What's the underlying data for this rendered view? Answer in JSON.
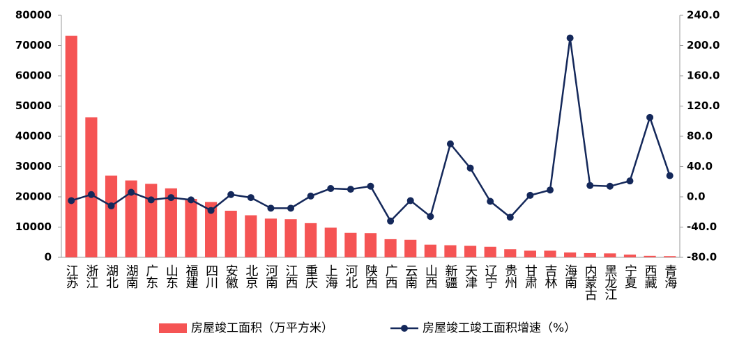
{
  "chart_data": {
    "type": "bar-line",
    "categories": [
      "江苏",
      "浙江",
      "湖北",
      "湖南",
      "广东",
      "山东",
      "福建",
      "四川",
      "安徽",
      "北京",
      "河南",
      "江西",
      "重庆",
      "上海",
      "河北",
      "陕西",
      "广西",
      "云南",
      "山西",
      "新疆",
      "天津",
      "辽宁",
      "贵州",
      "甘肃",
      "吉林",
      "海南",
      "内蒙古",
      "黑龙江",
      "宁夏",
      "西藏",
      "青海"
    ],
    "series": [
      {
        "name": "房屋竣工面积（万平方米）",
        "color": "#f55454",
        "type": "bar",
        "values": [
          73200,
          46300,
          27000,
          25400,
          24300,
          22800,
          19300,
          18300,
          15400,
          13900,
          12800,
          12600,
          11300,
          9800,
          8100,
          8000,
          6000,
          5800,
          4200,
          4000,
          3800,
          3500,
          2700,
          2200,
          2200,
          1600,
          1400,
          1300,
          900,
          500,
          400
        ]
      },
      {
        "name": "房屋竣工竣工面积增速（%）",
        "color": "#14285a",
        "type": "line",
        "axis": "y2",
        "values": [
          -5,
          3,
          -12,
          6,
          -4,
          -1,
          -4,
          -18,
          3,
          -1,
          -15,
          -15,
          1,
          11,
          10,
          14,
          -32,
          -5,
          -26,
          70,
          38,
          -6,
          -27,
          2,
          9,
          210,
          15,
          14,
          21,
          105,
          28
        ]
      }
    ],
    "ylim": [
      0,
      80000
    ],
    "yticks": [
      0,
      10000,
      20000,
      30000,
      40000,
      50000,
      60000,
      70000,
      80000
    ],
    "y2lim": [
      -80,
      240
    ],
    "y2ticks": [
      {
        "value": -80,
        "label": "-80.0"
      },
      {
        "value": -40,
        "label": "-40.0"
      },
      {
        "value": 0,
        "label": "0.0"
      },
      {
        "value": 40,
        "label": "40.0"
      },
      {
        "value": 80,
        "label": "80.0"
      },
      {
        "value": 120,
        "label": "120.0"
      },
      {
        "value": 160,
        "label": "160.0"
      },
      {
        "value": 200,
        "label": "200.0"
      },
      {
        "value": 240,
        "label": "240.0"
      }
    ],
    "grid": false,
    "legend": "bottom"
  }
}
